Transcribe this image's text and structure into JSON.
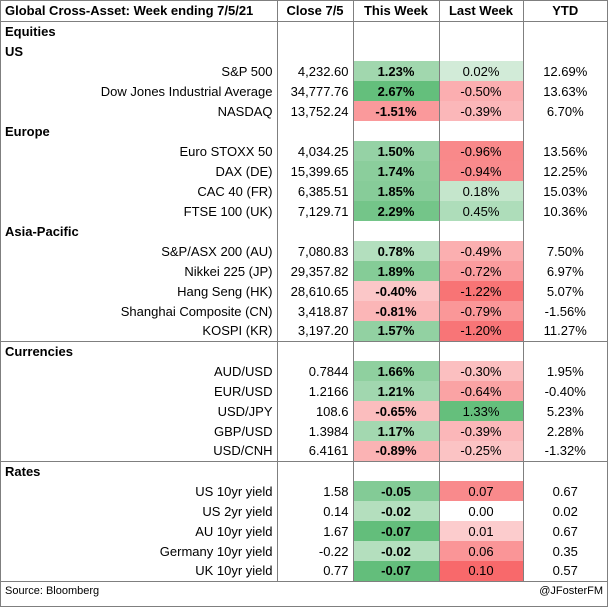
{
  "title": "Global Cross-Asset: Week ending 7/5/21",
  "headers": [
    "Close 7/5",
    "This Week",
    "Last Week",
    "YTD"
  ],
  "palette": {
    "pos_strong": "#63be7b",
    "pos_light": "#d4ecd9",
    "neg_strong": "#f8696b",
    "neg_light": "#fcd7d8",
    "neutral": "#ffffff"
  },
  "sections": [
    {
      "label": "Equities",
      "groups": [
        {
          "label": "US",
          "rows": [
            {
              "name": "S&P 500",
              "close": "4,232.60",
              "this_week": "1.23%",
              "last_week": "0.02%",
              "ytd": "12.69%",
              "tw": 1.23,
              "lw": 0.02
            },
            {
              "name": "Dow Jones Industrial Average",
              "close": "34,777.76",
              "this_week": "2.67%",
              "last_week": "-0.50%",
              "ytd": "13.63%",
              "tw": 2.67,
              "lw": -0.5
            },
            {
              "name": "NASDAQ",
              "close": "13,752.24",
              "this_week": "-1.51%",
              "last_week": "-0.39%",
              "ytd": "6.70%",
              "tw": -1.51,
              "lw": -0.39
            }
          ]
        },
        {
          "label": "Europe",
          "rows": [
            {
              "name": "Euro STOXX 50",
              "close": "4,034.25",
              "this_week": "1.50%",
              "last_week": "-0.96%",
              "ytd": "13.56%",
              "tw": 1.5,
              "lw": -0.96
            },
            {
              "name": "DAX (DE)",
              "close": "15,399.65",
              "this_week": "1.74%",
              "last_week": "-0.94%",
              "ytd": "12.25%",
              "tw": 1.74,
              "lw": -0.94
            },
            {
              "name": "CAC 40 (FR)",
              "close": "6,385.51",
              "this_week": "1.85%",
              "last_week": "0.18%",
              "ytd": "15.03%",
              "tw": 1.85,
              "lw": 0.18
            },
            {
              "name": "FTSE 100 (UK)",
              "close": "7,129.71",
              "this_week": "2.29%",
              "last_week": "0.45%",
              "ytd": "10.36%",
              "tw": 2.29,
              "lw": 0.45
            }
          ]
        },
        {
          "label": "Asia-Pacific",
          "rows": [
            {
              "name": "S&P/ASX 200 (AU)",
              "close": "7,080.83",
              "this_week": "0.78%",
              "last_week": "-0.49%",
              "ytd": "7.50%",
              "tw": 0.78,
              "lw": -0.49
            },
            {
              "name": "Nikkei 225 (JP)",
              "close": "29,357.82",
              "this_week": "1.89%",
              "last_week": "-0.72%",
              "ytd": "6.97%",
              "tw": 1.89,
              "lw": -0.72
            },
            {
              "name": "Hang Seng (HK)",
              "close": "28,610.65",
              "this_week": "-0.40%",
              "last_week": "-1.22%",
              "ytd": "5.07%",
              "tw": -0.4,
              "lw": -1.22
            },
            {
              "name": "Shanghai Composite (CN)",
              "close": "3,418.87",
              "this_week": "-0.81%",
              "last_week": "-0.79%",
              "ytd": "-1.56%",
              "tw": -0.81,
              "lw": -0.79
            },
            {
              "name": "KOSPI (KR)",
              "close": "3,197.20",
              "this_week": "1.57%",
              "last_week": "-1.20%",
              "ytd": "11.27%",
              "tw": 1.57,
              "lw": -1.2
            }
          ]
        }
      ]
    },
    {
      "label": "Currencies",
      "groups": [
        {
          "label": null,
          "rows": [
            {
              "name": "AUD/USD",
              "close": "0.7844",
              "this_week": "1.66%",
              "last_week": "-0.30%",
              "ytd": "1.95%",
              "tw": 1.66,
              "lw": -0.3
            },
            {
              "name": "EUR/USD",
              "close": "1.2166",
              "this_week": "1.21%",
              "last_week": "-0.64%",
              "ytd": "-0.40%",
              "tw": 1.21,
              "lw": -0.64
            },
            {
              "name": "USD/JPY",
              "close": "108.6",
              "this_week": "-0.65%",
              "last_week": "1.33%",
              "ytd": "5.23%",
              "tw": -0.65,
              "lw": 1.33
            },
            {
              "name": "GBP/USD",
              "close": "1.3984",
              "this_week": "1.17%",
              "last_week": "-0.39%",
              "ytd": "2.28%",
              "tw": 1.17,
              "lw": -0.39
            },
            {
              "name": "USD/CNH",
              "close": "6.4161",
              "this_week": "-0.89%",
              "last_week": "-0.25%",
              "ytd": "-1.32%",
              "tw": -0.89,
              "lw": -0.25
            }
          ]
        }
      ]
    },
    {
      "label": "Rates",
      "groups": [
        {
          "label": null,
          "rows": [
            {
              "name": "US 10yr yield",
              "close": "1.58",
              "this_week": "-0.05",
              "last_week": "0.07",
              "ytd": "0.67",
              "tw": -0.05,
              "lw": 0.07,
              "rate": true
            },
            {
              "name": "US 2yr yield",
              "close": "0.14",
              "this_week": "-0.02",
              "last_week": "0.00",
              "ytd": "0.02",
              "tw": -0.02,
              "lw": 0.0,
              "rate": true
            },
            {
              "name": "AU 10yr yield",
              "close": "1.67",
              "this_week": "-0.07",
              "last_week": "0.01",
              "ytd": "0.67",
              "tw": -0.07,
              "lw": 0.01,
              "rate": true
            },
            {
              "name": "Germany 10yr yield",
              "close": "-0.22",
              "this_week": "-0.02",
              "last_week": "0.06",
              "ytd": "0.35",
              "tw": -0.02,
              "lw": 0.06,
              "rate": true
            },
            {
              "name": "UK 10yr yield",
              "close": "0.77",
              "this_week": "-0.07",
              "last_week": "0.10",
              "ytd": "0.57",
              "tw": -0.07,
              "lw": 0.1,
              "rate": true
            }
          ]
        }
      ]
    }
  ],
  "footer": {
    "source": "Source: Bloomberg",
    "handle": "@JFosterFM"
  }
}
